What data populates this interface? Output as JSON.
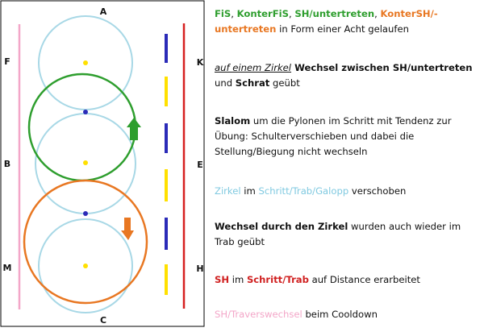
{
  "arena": {
    "letters": {
      "A": "A",
      "C": "C",
      "F": "F",
      "B": "B",
      "M": "M",
      "K": "K",
      "E": "E",
      "H": "H"
    },
    "colors": {
      "pink_track": "#f3a6c8",
      "red_track": "#d62020",
      "cyan_circle": "#a8d8e6",
      "green_circle": "#2e9e2e",
      "orange_circle": "#e87722",
      "yellow": "#ffe000",
      "blue": "#2b2bb8"
    },
    "icons": [
      "green-arrow-up-icon",
      "orange-arrow-down-icon"
    ]
  },
  "notes": {
    "n1": {
      "fis": "FiS",
      "sep1": ", ",
      "konterfis": "KonterFiS",
      "sep2": ", ",
      "sh_untertreten": "SH/untertreten",
      "sep3": ", ",
      "kontersh": "KonterSH/-untertreten",
      "rest": " in Form einer Acht gelaufen"
    },
    "n2": {
      "zirkel": "auf einem Zirkel",
      "wechsel": " Wechsel zwischen SH/untertreten",
      "und": " und ",
      "schrat": "Schrat",
      "geuebt": " geübt"
    },
    "n3": {
      "slalom": "Slalom",
      "rest": " um die Pylonen im Schritt mit Tendenz zur Übung: Schulterverschieben und dabei die Stellung/Biegung nicht wechseln"
    },
    "n4": {
      "zirkel": "Zirkel",
      "im": " im ",
      "gangart": "Schritt/Trab/Galopp",
      "rest": " verschoben"
    },
    "n5": {
      "wechsel": "Wechsel durch den Zirkel",
      "rest": " wurden auch wieder im Trab geübt"
    },
    "n6": {
      "sh": "SH",
      "im": " im ",
      "gangart": "Schritt/Trab",
      "rest": " auf Distance erarbeitet"
    },
    "n7": {
      "traverswechsel": "SH/Traverswechsel",
      "rest": " beim Cooldown"
    }
  }
}
